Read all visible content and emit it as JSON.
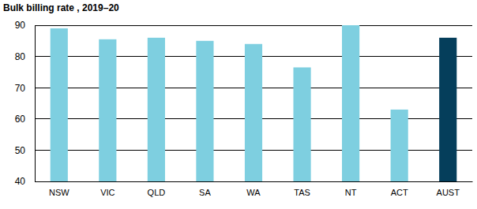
{
  "chart_data": {
    "type": "bar",
    "title": "Bulk billing rate , 2019–20",
    "categories": [
      "NSW",
      "VIC",
      "QLD",
      "SA",
      "WA",
      "TAS",
      "NT",
      "ACT",
      "AUST"
    ],
    "values": [
      89,
      85.5,
      86,
      85,
      84,
      76.5,
      90,
      63,
      86
    ],
    "colors": [
      "#7ecfe0",
      "#7ecfe0",
      "#7ecfe0",
      "#7ecfe0",
      "#7ecfe0",
      "#7ecfe0",
      "#7ecfe0",
      "#7ecfe0",
      "#053e5b"
    ],
    "ylim": [
      40,
      90
    ],
    "yticks": [
      40,
      50,
      60,
      70,
      80,
      90
    ],
    "grid": true
  }
}
